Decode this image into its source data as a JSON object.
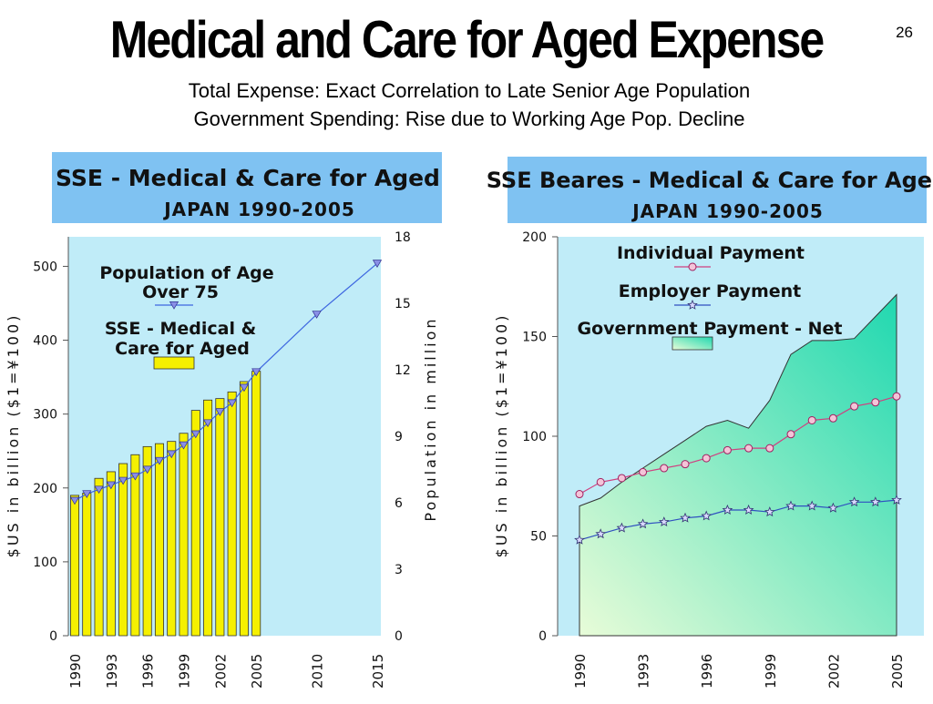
{
  "slide": {
    "title": "Medical and Care for Aged Expense",
    "page_number": "26",
    "subtitle_1": "Total Expense: Exact Correlation to Late Senior Age Population",
    "subtitle_2": "Government Spending: Rise due to Working Age Pop. Decline"
  },
  "colors": {
    "plot_background": "#c0ecf8",
    "title_banner": "#7fc2f2",
    "bar_fill": "#f5f000",
    "population_line": "#3d66e0",
    "individual_line": "#d04080",
    "employer_line": "#3050c0",
    "government_area_top": "#20d8b0",
    "government_area_bottom": "#e8fcd8"
  },
  "chart_data": [
    {
      "type": "bar",
      "title": "SSE - Medical & Care for Aged",
      "subtitle": "JAPAN 1990-2005",
      "ylabel": "$US in billion ($1=¥100)",
      "y2label": "Population in million",
      "ylim": [
        0,
        540
      ],
      "y2lim": [
        0,
        18
      ],
      "yticks": [
        0,
        100,
        200,
        300,
        400,
        500
      ],
      "y2ticks": [
        0,
        3,
        6,
        9,
        12,
        15,
        18
      ],
      "xticks": [
        "1990",
        "1993",
        "1996",
        "1999",
        "2002",
        "2005",
        "2010",
        "2015"
      ],
      "legend_items": [
        "Population of Age Over 75",
        "SSE - Medical & Care for Aged"
      ],
      "legend_lines": [
        "Population of Age",
        "Over 75",
        "SSE - Medical &",
        "Care for Aged"
      ],
      "grid": false,
      "series": [
        {
          "name": "SSE - Medical & Care for Aged",
          "type": "bar",
          "axis": "left",
          "x": [
            1990,
            1991,
            1992,
            1993,
            1994,
            1995,
            1996,
            1997,
            1998,
            1999,
            2000,
            2001,
            2002,
            2003,
            2004,
            2005
          ],
          "values": [
            190,
            193,
            213,
            222,
            233,
            245,
            256,
            260,
            263,
            274,
            305,
            319,
            321,
            330,
            344,
            358
          ]
        },
        {
          "name": "Population of Age Over 75",
          "type": "line",
          "axis": "right",
          "x": [
            1990,
            1991,
            1992,
            1993,
            1994,
            1995,
            1996,
            1997,
            1998,
            1999,
            2000,
            2001,
            2002,
            2003,
            2004,
            2005,
            2010,
            2015
          ],
          "values": [
            6.1,
            6.4,
            6.6,
            6.8,
            7.0,
            7.2,
            7.5,
            7.9,
            8.2,
            8.6,
            9.1,
            9.6,
            10.1,
            10.5,
            11.2,
            11.9,
            14.5,
            16.8
          ]
        }
      ]
    },
    {
      "type": "area",
      "title": "SSE Beares - Medical & Care for Aged",
      "subtitle": "JAPAN 1990-2005",
      "ylabel": "$US in billion ($1=¥100)",
      "ylim": [
        0,
        200
      ],
      "yticks": [
        0,
        50,
        100,
        150,
        200
      ],
      "xticks": [
        "1990",
        "1993",
        "1996",
        "1999",
        "2002",
        "2005"
      ],
      "grid": false,
      "x": [
        1990,
        1991,
        1992,
        1993,
        1994,
        1995,
        1996,
        1997,
        1998,
        1999,
        2000,
        2001,
        2002,
        2003,
        2004,
        2005
      ],
      "series": [
        {
          "name": "Individual Payment",
          "type": "line",
          "values": [
            71,
            77,
            79,
            82,
            84,
            86,
            89,
            93,
            94,
            94,
            101,
            108,
            109,
            115,
            117,
            120
          ]
        },
        {
          "name": "Employer Payment",
          "type": "line",
          "values": [
            48,
            51,
            54,
            56,
            57,
            59,
            60,
            63,
            63,
            62,
            65,
            65,
            64,
            67,
            67,
            68
          ]
        },
        {
          "name": "Government Payment - Net",
          "type": "area",
          "values": [
            65,
            69,
            77,
            84,
            91,
            98,
            105,
            108,
            104,
            118,
            141,
            148,
            148,
            149,
            160,
            171
          ]
        }
      ]
    }
  ]
}
